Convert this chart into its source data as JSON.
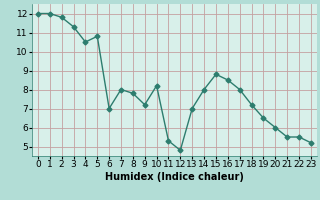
{
  "x": [
    0,
    1,
    2,
    3,
    4,
    5,
    6,
    7,
    8,
    9,
    10,
    11,
    12,
    13,
    14,
    15,
    16,
    17,
    18,
    19,
    20,
    21,
    22,
    23
  ],
  "y": [
    12.0,
    12.0,
    11.8,
    11.3,
    10.5,
    10.8,
    7.0,
    8.0,
    7.8,
    7.2,
    8.2,
    5.3,
    4.8,
    7.0,
    8.0,
    8.8,
    8.5,
    8.0,
    7.2,
    6.5,
    6.0,
    5.5,
    5.5,
    5.2
  ],
  "line_color": "#2d7d6e",
  "marker": "D",
  "marker_size": 2.5,
  "linewidth": 1.0,
  "xlabel": "Humidex (Indice chaleur)",
  "xlabel_fontsize": 7,
  "yticks": [
    5,
    6,
    7,
    8,
    9,
    10,
    11,
    12
  ],
  "xlim": [
    -0.5,
    23.5
  ],
  "ylim": [
    4.5,
    12.5
  ],
  "bg_outer": "#b2ddd6",
  "bg_plot": "#d8f0ea",
  "grid_color": "#c4a0a0",
  "tick_fontsize": 6.5,
  "xlabel_bold": true
}
